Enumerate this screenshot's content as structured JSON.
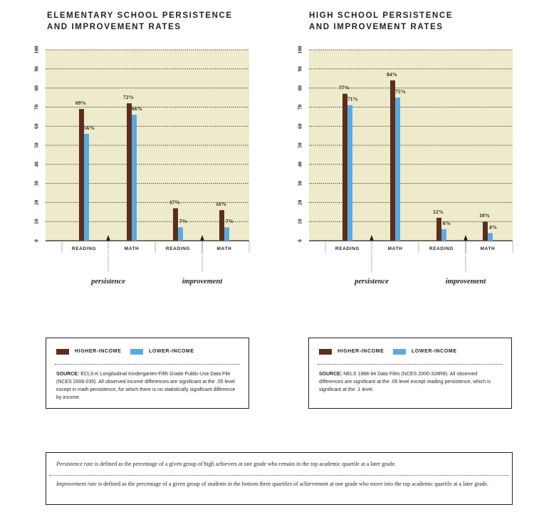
{
  "colors": {
    "higher": "#5b2e1c",
    "lower": "#5aa9e0",
    "plot_bg": "#eeebcd",
    "ink": "#231f20"
  },
  "legend": {
    "higher_label": "HIGHER-INCOME",
    "lower_label": "LOWER-INCOME"
  },
  "chart_data": [
    {
      "type": "bar",
      "title": "ELEMENTARY SCHOOL PERSISTENCE AND IMPROVEMENT RATES",
      "title_lines": [
        "ELEMENTARY SCHOOL PERSISTENCE",
        "AND IMPROVEMENT RATES"
      ],
      "categories": [
        "READING",
        "MATH",
        "READING",
        "MATH"
      ],
      "groups": [
        {
          "label": "persistence",
          "categories": [
            "READING",
            "MATH"
          ]
        },
        {
          "label": "improvement",
          "categories": [
            "READING",
            "MATH"
          ]
        }
      ],
      "series": [
        {
          "name": "HIGHER-INCOME",
          "values": [
            69,
            72,
            17,
            16
          ]
        },
        {
          "name": "LOWER-INCOME",
          "values": [
            56,
            66,
            7,
            7
          ]
        }
      ],
      "data_labels": [
        [
          "69%",
          "72%",
          "17%",
          "16%"
        ],
        [
          "56%",
          "66%",
          "7%",
          "7%"
        ]
      ],
      "ylim": [
        0,
        100
      ],
      "yticks": [
        0,
        10,
        20,
        30,
        40,
        50,
        60,
        70,
        80,
        90,
        100
      ],
      "grid": true,
      "source": {
        "label": "SOURCE:",
        "text": "ECLS-K Longitudinal Kindergarten-Fifth Grade Public-Use Data File (NCES 2006-035). All observed income differences are significant at the .05 level except in math persistence, for which there is no statistically significant difference by income."
      }
    },
    {
      "type": "bar",
      "title": "HIGH SCHOOL PERSISTENCE AND IMPROVEMENT RATES",
      "title_lines": [
        "HIGH SCHOOL PERSISTENCE",
        "AND IMPROVEMENT RATES"
      ],
      "categories": [
        "READING",
        "MATH",
        "READING",
        "MATH"
      ],
      "groups": [
        {
          "label": "persistence",
          "categories": [
            "READING",
            "MATH"
          ]
        },
        {
          "label": "improvement",
          "categories": [
            "READING",
            "MATH"
          ]
        }
      ],
      "series": [
        {
          "name": "HIGHER-INCOME",
          "values": [
            77,
            84,
            12,
            10
          ]
        },
        {
          "name": "LOWER-INCOME",
          "values": [
            71,
            75,
            6,
            4
          ]
        }
      ],
      "data_labels": [
        [
          "77%",
          "84%",
          "12%",
          "10%"
        ],
        [
          "71%",
          "75%",
          "6%",
          "4%"
        ]
      ],
      "ylim": [
        0,
        100
      ],
      "yticks": [
        0,
        10,
        20,
        30,
        40,
        50,
        60,
        70,
        80,
        90,
        100
      ],
      "grid": true,
      "source": {
        "label": "SOURCE:",
        "text": "NELS 1988-94 Data Files (NCES 2000-328R8). All observed differences are significant at the .05 level except reading persistence, which is significant at the .1 level."
      }
    }
  ],
  "definitions": [
    {
      "term": "Persistence rate",
      "text": " is defined as the percentage of a given group of high achievers at one grade who remain in the top academic quartile at a later grade."
    },
    {
      "term": "Improvement rate",
      "text": " is defined as the percentage of a given group of students in the bottom three quartiles of achievement at one grade who move into the top academic quartile at a later grade."
    }
  ]
}
